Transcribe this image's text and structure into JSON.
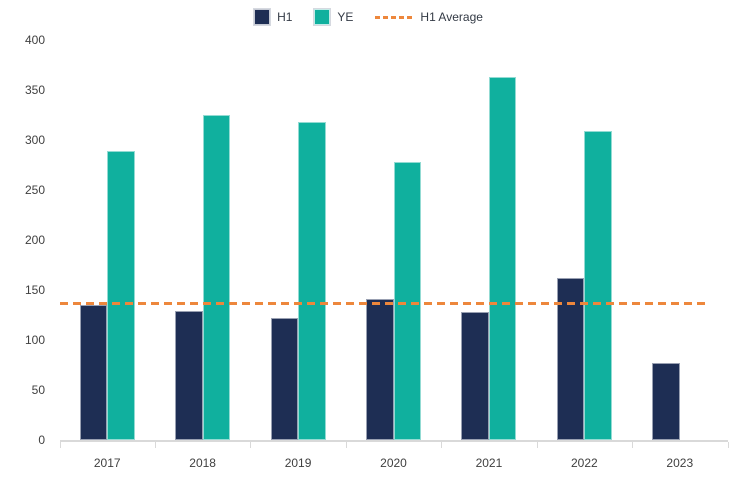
{
  "legend": {
    "h1_label": "H1",
    "ye_label": "YE",
    "avg_label": "H1 Average"
  },
  "colors": {
    "h1": "#1e2e54",
    "ye": "#10b09e",
    "average": "#ed873c",
    "axis": "#d9d9d9",
    "text": "#404040"
  },
  "chart_data": {
    "type": "bar",
    "title": "",
    "xlabel": "",
    "ylabel": "",
    "categories": [
      "2017",
      "2018",
      "2019",
      "2020",
      "2021",
      "2022",
      "2023"
    ],
    "series": [
      {
        "name": "H1",
        "values": [
          135,
          129,
          122,
          141,
          128,
          162,
          77
        ]
      },
      {
        "name": "YE",
        "values": [
          289,
          325,
          318,
          278,
          363,
          309,
          null
        ]
      }
    ],
    "h1_average": 136.2,
    "ylim": [
      0,
      400
    ],
    "yticks": [
      0,
      50,
      100,
      150,
      200,
      250,
      300,
      350,
      400
    ],
    "grid": false,
    "legend_position": "top"
  }
}
